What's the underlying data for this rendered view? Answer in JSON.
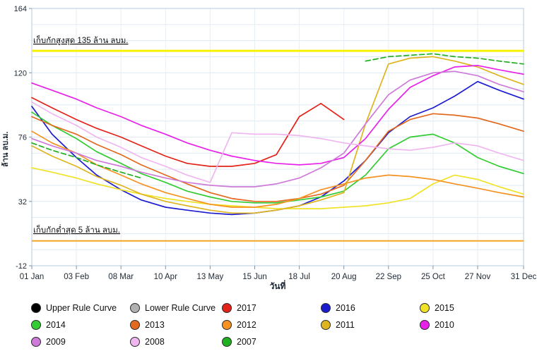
{
  "chart_data": {
    "type": "line",
    "title": "",
    "xlabel": "วันที่",
    "ylabel": "ล้าน ลบ.ม.",
    "ylim": [
      -12,
      164
    ],
    "minor_grid_step": 11,
    "y_ticks": [
      -12,
      32,
      76,
      120,
      164
    ],
    "x_ticks": [
      {
        "day": 1,
        "label": "01 Jan"
      },
      {
        "day": 34,
        "label": "03 Feb"
      },
      {
        "day": 67,
        "label": "08 Mar"
      },
      {
        "day": 100,
        "label": "10 Apr"
      },
      {
        "day": 133,
        "label": "13 May"
      },
      {
        "day": 166,
        "label": "15 Jun"
      },
      {
        "day": 199,
        "label": "18 Jul"
      },
      {
        "day": 232,
        "label": "20 Aug"
      },
      {
        "day": 265,
        "label": "22 Sep"
      },
      {
        "day": 298,
        "label": "25 Oct"
      },
      {
        "day": 331,
        "label": "27 Nov"
      },
      {
        "day": 365,
        "label": "31 Dec"
      }
    ],
    "annotations": [
      {
        "label": "เก็บกักสูงสุด 135 ล้าน ลบม.",
        "value": 135,
        "color": "#f8f202",
        "width": 3
      },
      {
        "label": "เก็บกักต่ำสุด 5 ล้าน ลบม.",
        "value": 5,
        "color": "#f6a623",
        "width": 2
      }
    ],
    "x_days": [
      1,
      16,
      34,
      49,
      67,
      82,
      100,
      116,
      133,
      149,
      166,
      182,
      199,
      215,
      232,
      248,
      265,
      281,
      298,
      314,
      331,
      347,
      365
    ],
    "series": [
      {
        "name": "Upper Rule Curve",
        "color": "#000000",
        "dash": false,
        "values": []
      },
      {
        "name": "Lower Rule Curve",
        "color": "#b0b0b0",
        "dash": false,
        "values": []
      },
      {
        "name": "2017",
        "color": "#e32219",
        "dash": false,
        "values": [
          103,
          96,
          88,
          82,
          76,
          70,
          63,
          58,
          56,
          56,
          58,
          64,
          90,
          99,
          88,
          null,
          null,
          null,
          null,
          null,
          null,
          null,
          null
        ]
      },
      {
        "name": "2016",
        "color": "#1c1ccf",
        "dash": false,
        "values": [
          97,
          78,
          62,
          50,
          40,
          33,
          28,
          26,
          24,
          23,
          24,
          26,
          29,
          35,
          46,
          60,
          79,
          90,
          96,
          104,
          114,
          108,
          102
        ]
      },
      {
        "name": "2015",
        "color": "#f0e225",
        "dash": false,
        "values": [
          55,
          52,
          48,
          44,
          40,
          37,
          34,
          32,
          30,
          29,
          28,
          27,
          27,
          27,
          28,
          29,
          31,
          34,
          44,
          50,
          47,
          42,
          37
        ]
      },
      {
        "name": "2014",
        "color": "#33cc33",
        "dash": false,
        "values": [
          93,
          84,
          75,
          66,
          58,
          51,
          45,
          39,
          35,
          32,
          31,
          31,
          33,
          35,
          39,
          50,
          68,
          76,
          78,
          72,
          62,
          56,
          51
        ]
      },
      {
        "name": "2013",
        "color": "#e2691d",
        "dash": false,
        "values": [
          90,
          84,
          78,
          71,
          64,
          57,
          50,
          44,
          38,
          34,
          32,
          32,
          34,
          37,
          43,
          60,
          80,
          88,
          92,
          91,
          89,
          85,
          80
        ]
      },
      {
        "name": "2012",
        "color": "#f59220",
        "dash": false,
        "values": [
          80,
          72,
          65,
          57,
          50,
          44,
          38,
          34,
          30,
          28,
          28,
          30,
          34,
          40,
          44,
          48,
          50,
          49,
          47,
          44,
          41,
          38,
          35
        ]
      },
      {
        "name": "2011",
        "color": "#dfb51f",
        "dash": false,
        "values": [
          70,
          63,
          56,
          49,
          43,
          37,
          32,
          29,
          26,
          24,
          24,
          26,
          29,
          33,
          38,
          85,
          126,
          130,
          131,
          128,
          124,
          118,
          112
        ]
      },
      {
        "name": "2010",
        "color": "#e821e8",
        "dash": false,
        "values": [
          113,
          108,
          102,
          96,
          90,
          84,
          78,
          72,
          67,
          63,
          60,
          58,
          57,
          58,
          62,
          75,
          95,
          110,
          118,
          124,
          125,
          122,
          119
        ]
      },
      {
        "name": "2009",
        "color": "#ce7ad8",
        "dash": false,
        "values": [
          75,
          70,
          65,
          60,
          56,
          52,
          48,
          45,
          43,
          42,
          42,
          44,
          48,
          55,
          65,
          85,
          105,
          115,
          120,
          121,
          118,
          112,
          107
        ]
      },
      {
        "name": "2008",
        "color": "#efb6ef",
        "dash": false,
        "values": [
          100,
          92,
          84,
          76,
          69,
          62,
          56,
          50,
          45,
          79,
          78,
          78,
          77,
          75,
          72,
          70,
          68,
          67,
          69,
          72,
          70,
          65,
          60
        ]
      },
      {
        "name": "2007",
        "color": "#1faf1f",
        "dash": true,
        "values": [
          72,
          67,
          62,
          57,
          52,
          48,
          null,
          null,
          null,
          null,
          null,
          null,
          null,
          null,
          null,
          128,
          131,
          132,
          133,
          131,
          130,
          128,
          126
        ]
      }
    ]
  }
}
